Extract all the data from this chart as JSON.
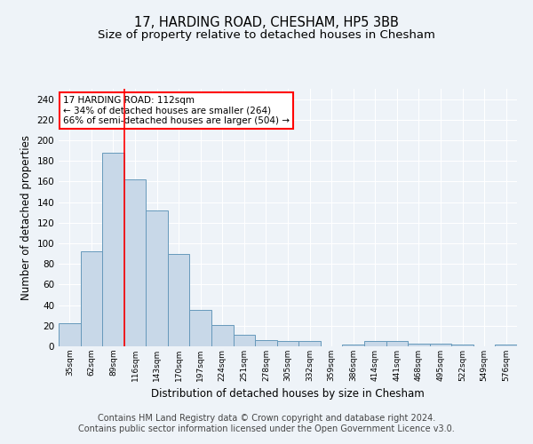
{
  "title": "17, HARDING ROAD, CHESHAM, HP5 3BB",
  "subtitle": "Size of property relative to detached houses in Chesham",
  "xlabel": "Distribution of detached houses by size in Chesham",
  "ylabel": "Number of detached properties",
  "bin_labels": [
    "35sqm",
    "62sqm",
    "89sqm",
    "116sqm",
    "143sqm",
    "170sqm",
    "197sqm",
    "224sqm",
    "251sqm",
    "278sqm",
    "305sqm",
    "332sqm",
    "359sqm",
    "386sqm",
    "414sqm",
    "441sqm",
    "468sqm",
    "495sqm",
    "522sqm",
    "549sqm",
    "576sqm"
  ],
  "bar_heights": [
    22,
    92,
    188,
    162,
    132,
    90,
    35,
    21,
    11,
    6,
    5,
    5,
    0,
    2,
    5,
    5,
    3,
    3,
    2,
    0,
    2
  ],
  "bar_color": "#c8d8e8",
  "bar_edge_color": "#6699bb",
  "vline_x_index": 3,
  "vline_color": "red",
  "annotation_text": "17 HARDING ROAD: 112sqm\n← 34% of detached houses are smaller (264)\n66% of semi-detached houses are larger (504) →",
  "annotation_box_color": "white",
  "annotation_box_edge": "red",
  "ylim": [
    0,
    250
  ],
  "yticks": [
    0,
    20,
    40,
    60,
    80,
    100,
    120,
    140,
    160,
    180,
    200,
    220,
    240
  ],
  "footnote": "Contains HM Land Registry data © Crown copyright and database right 2024.\nContains public sector information licensed under the Open Government Licence v3.0.",
  "background_color": "#eef3f8",
  "plot_bg_color": "#eef3f8",
  "grid_color": "white",
  "title_fontsize": 10.5,
  "subtitle_fontsize": 9.5,
  "xlabel_fontsize": 8.5,
  "ylabel_fontsize": 8.5,
  "footnote_fontsize": 7,
  "tick_fontsize": 7.5,
  "xtick_fontsize": 6.5
}
